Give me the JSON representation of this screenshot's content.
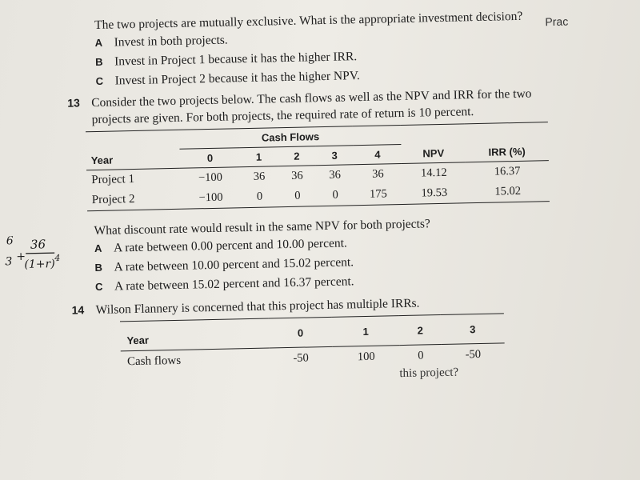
{
  "corner_text": "Prac",
  "q12": {
    "stem": "The two projects are mutually exclusive. What is the appropriate investment decision?",
    "options": [
      {
        "letter": "A",
        "text": "Invest in both projects."
      },
      {
        "letter": "B",
        "text": "Invest in Project 1 because it has the higher IRR."
      },
      {
        "letter": "C",
        "text": "Invest in Project 2 because it has the higher NPV."
      }
    ]
  },
  "q13": {
    "number": "13",
    "stem": "Consider the two projects below. The cash flows as well as the NPV and IRR for the two projects are given. For both projects, the required rate of return is 10 percent.",
    "table": {
      "group_header": "Cash Flows",
      "year_label": "Year",
      "years": [
        "0",
        "1",
        "2",
        "3",
        "4"
      ],
      "npv_label": "NPV",
      "irr_label": "IRR (%)",
      "rows": [
        {
          "name": "Project 1",
          "flows": [
            "−100",
            "36",
            "36",
            "36",
            "36"
          ],
          "npv": "14.12",
          "irr": "16.37"
        },
        {
          "name": "Project 2",
          "flows": [
            "−100",
            "0",
            "0",
            "0",
            "175"
          ],
          "npv": "19.53",
          "irr": "15.02"
        }
      ]
    },
    "question": "What discount rate would result in the same NPV for both projects?",
    "options": [
      {
        "letter": "A",
        "text": "A rate between 0.00 percent and 10.00 percent."
      },
      {
        "letter": "B",
        "text": "A rate between 10.00 percent and 15.02 percent."
      },
      {
        "letter": "C",
        "text": "A rate between 15.02 percent and 16.37 percent."
      }
    ]
  },
  "q14": {
    "number": "14",
    "stem": "Wilson Flannery is concerned that this project has multiple IRRs.",
    "table": {
      "year_label": "Year",
      "years": [
        "0",
        "1",
        "2",
        "3"
      ],
      "row_label": "Cash flows",
      "flows": [
        "-50",
        "100",
        "0",
        "-50"
      ]
    },
    "cut_text": "this project?"
  },
  "handwriting": {
    "numerator": "36",
    "denominator": "(1+r)",
    "exponent": "4",
    "left_exp": "3"
  }
}
